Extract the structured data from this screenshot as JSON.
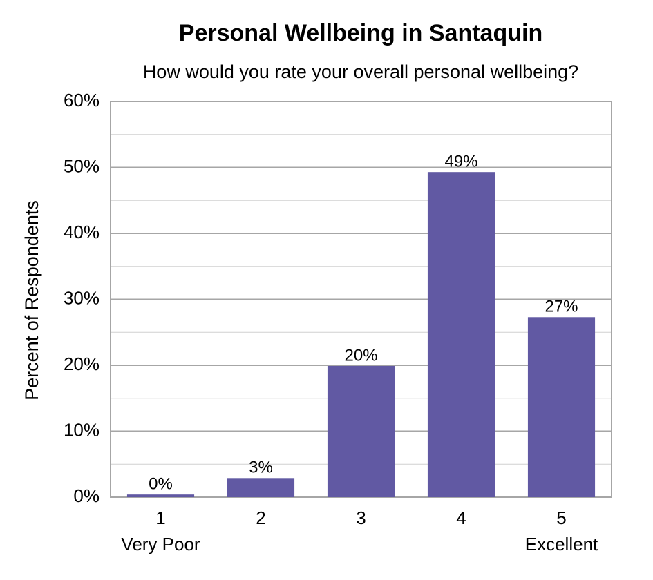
{
  "chart_data": {
    "type": "bar",
    "title": "Personal Wellbeing in Santaquin",
    "subtitle": "How would you rate your overall personal wellbeing?",
    "y_label": "Percent of Respondents",
    "categories": [
      "1",
      "2",
      "3",
      "4",
      "5"
    ],
    "category_sublabels": [
      "Very Poor",
      null,
      null,
      null,
      "Excellent"
    ],
    "values": [
      0.4,
      2.9,
      19.9,
      49.3,
      27.3
    ],
    "value_labels": [
      "0%",
      "3%",
      "20%",
      "49%",
      "27%"
    ],
    "color": "#6159a3",
    "ylim": [
      0,
      60
    ],
    "yticks": [
      {
        "value": 0,
        "label": "0%"
      },
      {
        "value": 10,
        "label": "10%"
      },
      {
        "value": 20,
        "label": "20%"
      },
      {
        "value": 30,
        "label": "30%"
      },
      {
        "value": 40,
        "label": "40%"
      },
      {
        "value": 50,
        "label": "50%"
      },
      {
        "value": 60,
        "label": "60%"
      }
    ],
    "minor_yticks": [
      5,
      15,
      25,
      35,
      45,
      55
    ],
    "grid": true
  }
}
